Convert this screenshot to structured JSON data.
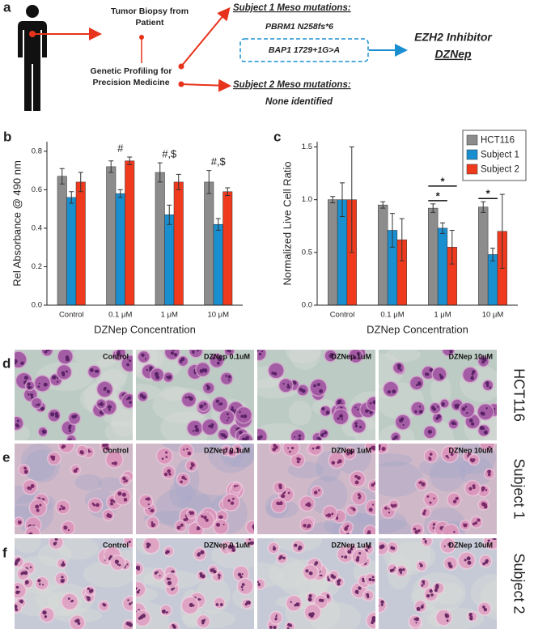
{
  "panels": [
    "a",
    "b",
    "c",
    "d",
    "e",
    "f"
  ],
  "diagram": {
    "biopsy": [
      "Tumor Biopsy from",
      "Patient"
    ],
    "profiling": [
      "Genetic Profiling for",
      "Precision Medicine"
    ],
    "subject1_heading": "Subject 1 Meso mutations:",
    "subject1_mutations": [
      "PBRM1 N258fs*6",
      "BAP1 1729+1G>A"
    ],
    "inhibitor": "EZH2 Inhibitor",
    "drug": "DZNep",
    "subject2_heading": "Subject 2 Meso mutations:",
    "subject2_mutations": "None identified"
  },
  "chart_data": [
    {
      "type": "bar",
      "ylabel": "Rel Absorbance @ 490 nm",
      "xlabel": "DZNep Concentration",
      "categories": [
        "Control",
        "0.1 μM",
        "1 μM",
        "10 μM"
      ],
      "series": [
        {
          "color": "#8c8c8c",
          "values": [
            0.67,
            0.72,
            0.69,
            0.64
          ],
          "errors": [
            0.04,
            0.03,
            0.05,
            0.06
          ]
        },
        {
          "color": "#1a8fd0",
          "values": [
            0.56,
            0.58,
            0.47,
            0.42
          ],
          "errors": [
            0.03,
            0.02,
            0.05,
            0.03
          ]
        },
        {
          "color": "#f03a1e",
          "values": [
            0.64,
            0.75,
            0.64,
            0.59
          ],
          "errors": [
            0.05,
            0.02,
            0.04,
            0.02
          ]
        }
      ],
      "ylim": [
        0,
        0.85
      ],
      "yticks": [
        {
          "value": 0,
          "label": "0.0"
        },
        0.2,
        0.4,
        0.6,
        0.8
      ],
      "annotations": [
        "#",
        "#,$",
        "#,$"
      ]
    },
    {
      "type": "bar",
      "ylabel": "Normalized Live Cell Ratio",
      "xlabel": "DZNep Concentration",
      "categories": [
        "Control",
        "0.1 μM",
        "1 μM",
        "10 μM"
      ],
      "series": [
        {
          "name": "HCT116",
          "color": "#8c8c8c",
          "values": [
            1.0,
            0.95,
            0.92,
            0.93
          ],
          "errors": [
            0.03,
            0.03,
            0.04,
            0.05
          ]
        },
        {
          "name": "Subject 1",
          "color": "#1a8fd0",
          "values": [
            1.0,
            0.71,
            0.73,
            0.48
          ],
          "errors": [
            0.16,
            0.16,
            0.05,
            0.06
          ]
        },
        {
          "name": "Subject 2",
          "color": "#f03a1e",
          "values": [
            1.0,
            0.62,
            0.55,
            0.7
          ],
          "errors": [
            0.5,
            0.2,
            0.16,
            0.35
          ]
        }
      ],
      "ylim": [
        0,
        1.55
      ],
      "yticks": [
        {
          "value": 0,
          "label": "0.0"
        },
        0.5,
        {
          "value": 1,
          "label": "1.0"
        },
        1.5
      ],
      "legend": "upper right",
      "annotations": [
        "*",
        "*",
        "*"
      ]
    }
  ],
  "micrographs": {
    "rows": [
      "HCT116",
      "Subject 1",
      "Subject 2"
    ],
    "row_colors": [
      "#111111",
      "#1a8fd0",
      "#f03a1e"
    ],
    "columns": [
      "Control",
      "DZNep 0.1uM",
      "DZNep 1uM",
      "DZNep 10uM"
    ]
  }
}
